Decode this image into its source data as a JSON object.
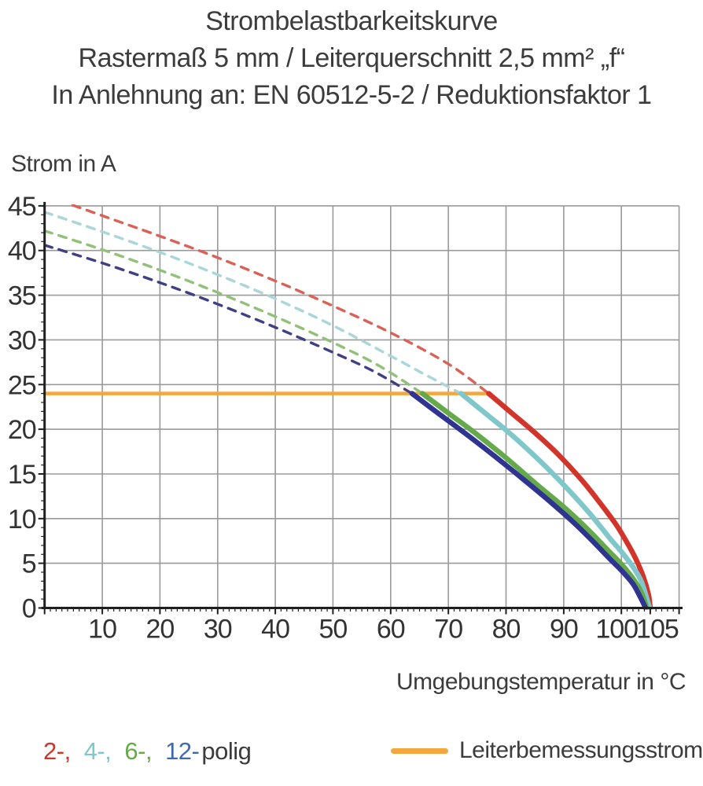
{
  "title": {
    "line1": "Strombelastbarkeitskurve",
    "line2": "Rastermaß 5 mm / Leiterquerschnitt 2,5 mm² „f“",
    "line3": "In Anlehnung an: EN 60512-5-2 / Reduktionsfaktor 1"
  },
  "chart_data": {
    "type": "line",
    "title": "Strombelastbarkeitskurve Rastermaß 5 mm / Leiterquerschnitt 2,5 mm² „f“ / In Anlehnung an: EN 60512-5-2 / Reduktionsfaktor 1",
    "xlabel": "Umgebungstemperatur in °C",
    "ylabel": "Strom in A",
    "xlim": [
      0,
      110
    ],
    "ylim": [
      0,
      45
    ],
    "x_tick_labels": [
      10,
      20,
      30,
      40,
      50,
      60,
      70,
      80,
      90,
      100,
      105
    ],
    "x_gridline_step": 10,
    "y_tick_labels": [
      0,
      5,
      10,
      15,
      20,
      25,
      30,
      35,
      40,
      45
    ],
    "y_gridline_step": 5,
    "grid": true,
    "axis_color": "#1f1f1f",
    "grid_color": "#9a9a9a",
    "tick_label_color": "#333333",
    "reference_line": {
      "name": "Leiterbemessungsstrom",
      "color": "#f6a63d",
      "current": 24,
      "x_range": [
        0,
        77
      ]
    },
    "series": [
      {
        "name": "2-polig",
        "color": "#d2342a",
        "dash_color": "#db6157",
        "points_dashed": [
          [
            0,
            46.2
          ],
          [
            10,
            43.9
          ],
          [
            20,
            41.6
          ],
          [
            30,
            39.2
          ],
          [
            40,
            36.6
          ],
          [
            50,
            33.8
          ],
          [
            60,
            30.8
          ],
          [
            70,
            27.3
          ],
          [
            77,
            24
          ]
        ],
        "points_solid": [
          [
            77,
            24
          ],
          [
            81,
            21.8
          ],
          [
            85,
            19.6
          ],
          [
            89,
            17.2
          ],
          [
            93,
            14.4
          ],
          [
            96,
            12.0
          ],
          [
            99,
            9.4
          ],
          [
            101,
            7.3
          ],
          [
            102.5,
            5.5
          ],
          [
            103.8,
            3.5
          ],
          [
            104.7,
            1.5
          ],
          [
            105,
            0
          ]
        ]
      },
      {
        "name": "4-polig",
        "color": "#7fc7cb",
        "dash_color": "#a9d6d8",
        "points_dashed": [
          [
            0,
            44.3
          ],
          [
            10,
            42.1
          ],
          [
            20,
            39.8
          ],
          [
            30,
            37.3
          ],
          [
            40,
            34.6
          ],
          [
            50,
            31.6
          ],
          [
            60,
            28.2
          ],
          [
            66,
            26.1
          ],
          [
            72.2,
            24
          ]
        ],
        "points_solid": [
          [
            72.2,
            24
          ],
          [
            76,
            22.0
          ],
          [
            80,
            19.9
          ],
          [
            84,
            17.6
          ],
          [
            88,
            15.1
          ],
          [
            92,
            12.4
          ],
          [
            95,
            10.2
          ],
          [
            98,
            7.8
          ],
          [
            100,
            6.3
          ],
          [
            102,
            4.6
          ],
          [
            103.5,
            2.9
          ],
          [
            104.9,
            0
          ]
        ]
      },
      {
        "name": "6-polig",
        "color": "#64aa4a",
        "dash_color": "#8fc177",
        "points_dashed": [
          [
            0,
            42.2
          ],
          [
            10,
            40.1
          ],
          [
            20,
            37.8
          ],
          [
            30,
            35.3
          ],
          [
            40,
            32.6
          ],
          [
            50,
            29.7
          ],
          [
            58,
            27.1
          ],
          [
            65.5,
            24
          ]
        ],
        "points_solid": [
          [
            65.5,
            24
          ],
          [
            70,
            21.8
          ],
          [
            75,
            19.4
          ],
          [
            80,
            16.8
          ],
          [
            85,
            14.0
          ],
          [
            90,
            11.3
          ],
          [
            94,
            8.9
          ],
          [
            97,
            6.9
          ],
          [
            100,
            4.9
          ],
          [
            102,
            3.3
          ],
          [
            103.5,
            1.7
          ],
          [
            104.4,
            0
          ]
        ]
      },
      {
        "name": "12-polig",
        "color": "#2f3391",
        "dash_color": "#3f3f85",
        "points_dashed": [
          [
            0,
            40.6
          ],
          [
            10,
            38.6
          ],
          [
            20,
            36.4
          ],
          [
            30,
            34.0
          ],
          [
            40,
            31.4
          ],
          [
            50,
            28.6
          ],
          [
            57,
            26.5
          ],
          [
            63.7,
            24
          ]
        ],
        "points_solid": [
          [
            63.7,
            24
          ],
          [
            68,
            21.9
          ],
          [
            73,
            19.5
          ],
          [
            78,
            17.0
          ],
          [
            83,
            14.4
          ],
          [
            88,
            11.7
          ],
          [
            92,
            9.4
          ],
          [
            95,
            7.5
          ],
          [
            98,
            5.5
          ],
          [
            100,
            4.2
          ],
          [
            102,
            2.7
          ],
          [
            103.3,
            1.2
          ],
          [
            104.2,
            0
          ]
        ]
      }
    ]
  },
  "legend": {
    "pole_items": [
      {
        "label": "2-,",
        "color": "#d2342a"
      },
      {
        "label": "4-,",
        "color": "#7fc7cb"
      },
      {
        "label": "6-,",
        "color": "#64aa4a"
      },
      {
        "label": "12-",
        "color": "#3d69b4"
      },
      {
        "label": "polig",
        "color": "#3b3b3b"
      }
    ],
    "reference_label": "Leiterbemessungsstrom"
  }
}
